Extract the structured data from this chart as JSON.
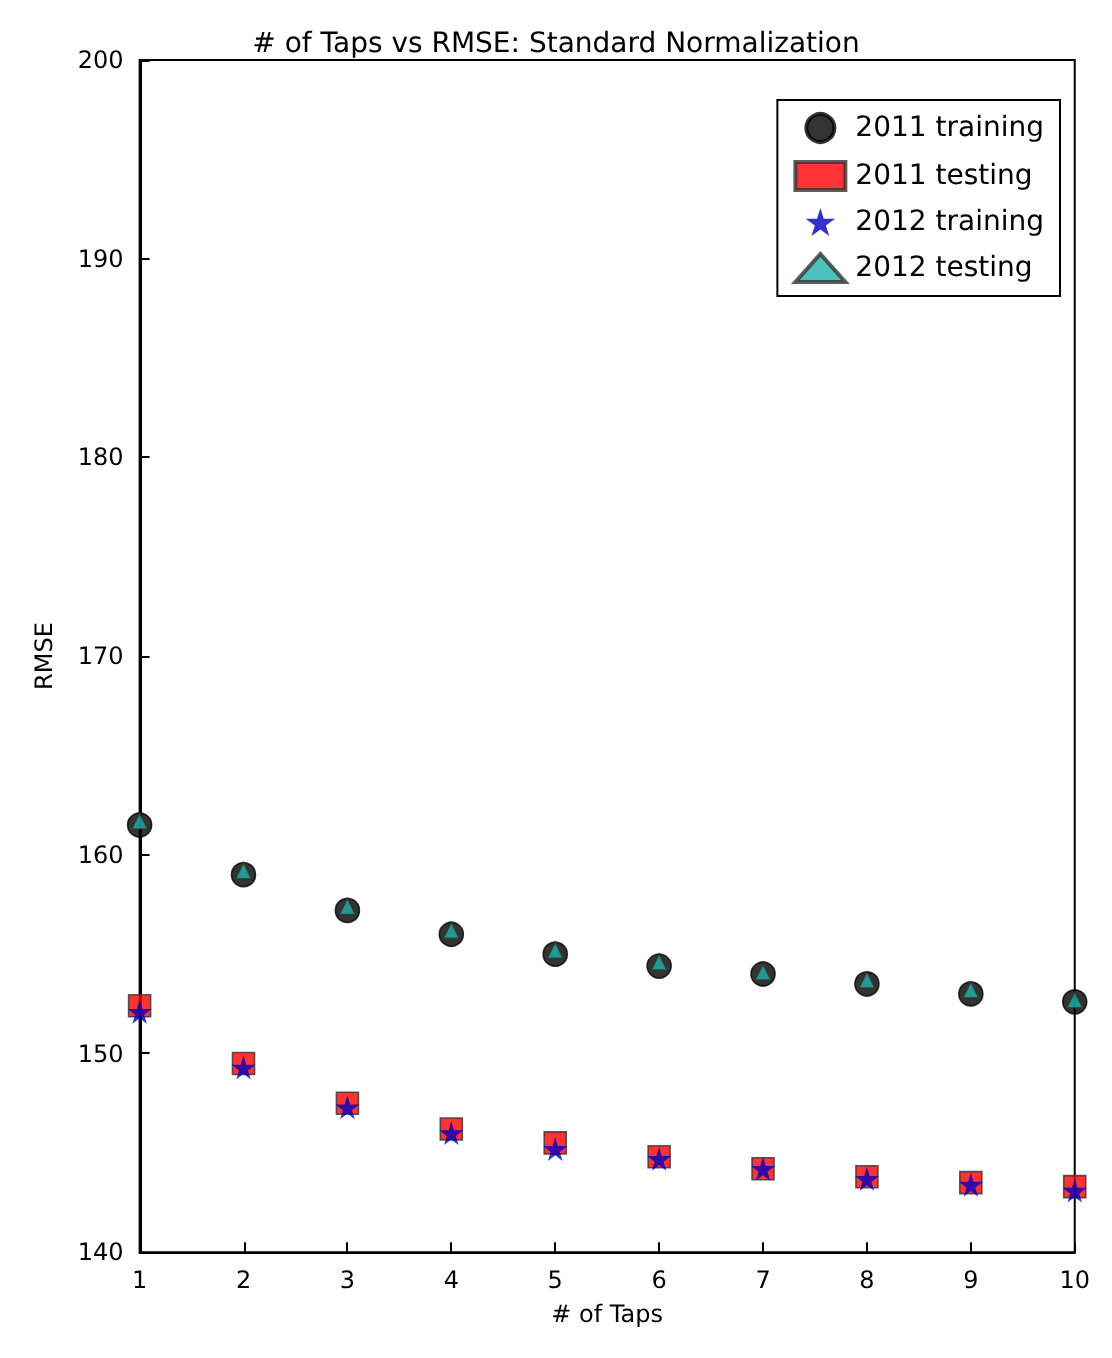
{
  "chart_data": {
    "type": "scatter",
    "title": "# of Taps vs RMSE: Standard Normalization",
    "xlabel": "# of Taps",
    "ylabel": "RMSE",
    "x": [
      1,
      2,
      3,
      4,
      5,
      6,
      7,
      8,
      9,
      10
    ],
    "series": [
      {
        "name": "2011 training",
        "color": "#000000",
        "marker": "circle",
        "values": [
          161.5,
          159.0,
          157.2,
          156.0,
          155.0,
          154.4,
          154.0,
          153.5,
          153.0,
          152.6
        ]
      },
      {
        "name": "2011 testing",
        "color": "#ff0000",
        "marker": "square",
        "values": [
          152.4,
          149.5,
          147.5,
          146.2,
          145.5,
          144.8,
          144.2,
          143.8,
          143.5,
          143.3
        ]
      },
      {
        "name": "2012 training",
        "color": "#0000bf",
        "marker": "star",
        "values": [
          152.1,
          149.3,
          147.3,
          146.0,
          145.2,
          144.7,
          144.2,
          143.7,
          143.4,
          143.1
        ]
      },
      {
        "name": "2012 testing",
        "color": "#20b2aa",
        "marker": "triangle",
        "values": [
          161.7,
          159.2,
          157.4,
          156.2,
          155.2,
          154.6,
          154.1,
          153.7,
          153.2,
          152.7
        ]
      }
    ],
    "xlim": [
      1,
      10
    ],
    "xticks": [
      1,
      2,
      3,
      4,
      5,
      6,
      7,
      8,
      9,
      10
    ],
    "ylim": [
      140,
      200
    ],
    "yticks": [
      140,
      150,
      160,
      170,
      180,
      190,
      200
    ],
    "grid": false,
    "legend": "top right"
  }
}
